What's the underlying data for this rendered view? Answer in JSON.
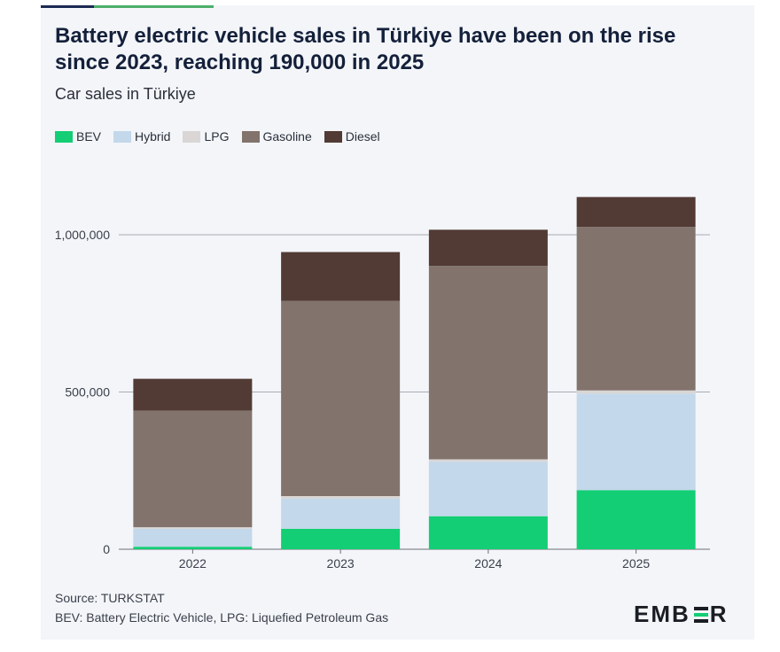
{
  "title": "Battery electric vehicle sales in Türkiye have been on the rise since 2023, reaching 190,000 in 2025",
  "subtitle": "Car sales in Türkiye",
  "legend": [
    {
      "label": "BEV",
      "color": "#13ce74"
    },
    {
      "label": "Hybrid",
      "color": "#c3d8ea"
    },
    {
      "label": "LPG",
      "color": "#d9d6d5"
    },
    {
      "label": "Gasoline",
      "color": "#82736d"
    },
    {
      "label": "Diesel",
      "color": "#523a35"
    }
  ],
  "chart_data": {
    "type": "bar",
    "stacked": true,
    "title": "Battery electric vehicle sales in Türkiye have been on the rise since 2023, reaching 190,000 in 2025",
    "subtitle": "Car sales in Türkiye",
    "categories": [
      "2022",
      "2023",
      "2024",
      "2025"
    ],
    "series": [
      {
        "name": "BEV",
        "color": "#13ce74",
        "values": [
          8000,
          65000,
          105000,
          188000
        ]
      },
      {
        "name": "Hybrid",
        "color": "#c3d8ea",
        "values": [
          57000,
          96000,
          173000,
          307000
        ]
      },
      {
        "name": "LPG",
        "color": "#d9d6d5",
        "values": [
          5000,
          8000,
          8000,
          10000
        ]
      },
      {
        "name": "Gasoline",
        "color": "#82736d",
        "values": [
          371000,
          621000,
          615000,
          520000
        ]
      },
      {
        "name": "Diesel",
        "color": "#523a35",
        "values": [
          101000,
          155000,
          115000,
          95000
        ]
      }
    ],
    "yticks": [
      0,
      500000,
      1000000
    ],
    "ytick_labels": [
      "0",
      "500,000",
      "1,000,000"
    ],
    "ylim": [
      0,
      1150000
    ],
    "xlabel": "",
    "ylabel": "",
    "grid": true
  },
  "footer": {
    "source": "Source: TURKSTAT",
    "note": "BEV: Battery Electric Vehicle, LPG: Liquefied Petroleum Gas"
  },
  "logo": {
    "left": "EMB",
    "right": "R"
  }
}
